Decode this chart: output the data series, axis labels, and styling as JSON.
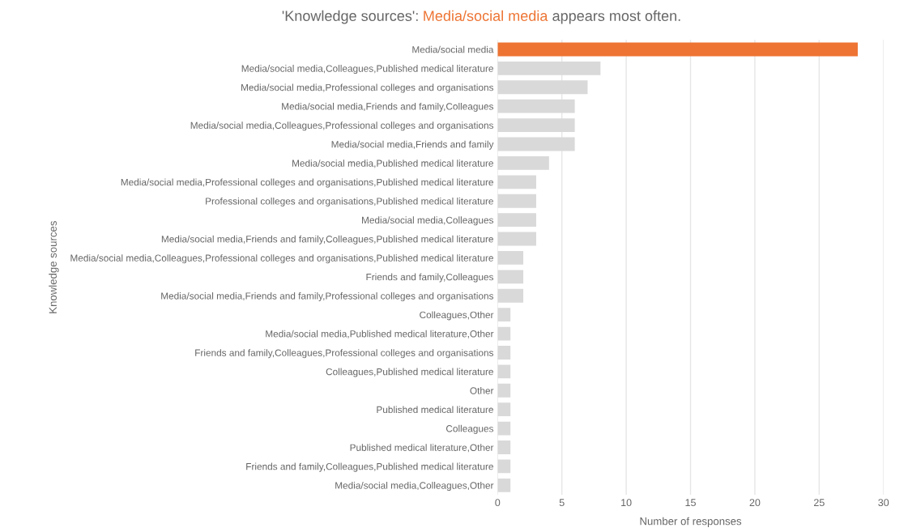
{
  "chart_data": {
    "type": "bar",
    "orientation": "horizontal",
    "title": "'Knowledge sources': Media/social media appears most often.",
    "xlabel": "Number of responses",
    "ylabel": "Knowledge sources",
    "categories": [
      "Media/social media",
      "Media/social media,Colleagues,Published medical literature",
      "Media/social media,Professional colleges and organisations",
      "Media/social media,Friends and family,Colleagues",
      "Media/social media,Colleagues,Professional colleges and organisations",
      "Media/social media,Friends and family",
      "Media/social media,Published medical literature",
      "Media/social media,Professional colleges and organisations,Published medical literature",
      "Professional colleges and organisations,Published medical literature",
      "Media/social media,Colleagues",
      "Media/social media,Friends and family,Colleagues,Published medical literature",
      "Media/social media,Colleagues,Professional colleges and organisations,Published medical literature",
      "Friends and family,Colleagues",
      "Media/social media,Friends and family,Professional colleges and organisations",
      "Colleagues,Other",
      "Media/social media,Published medical literature,Other",
      "Friends and family,Colleagues,Professional colleges and organisations",
      "Colleagues,Published medical literature",
      "Other",
      "Published medical literature",
      "Colleagues",
      "Published medical literature,Other",
      "Friends and family,Colleagues,Published medical literature",
      "Media/social media,Colleagues,Other"
    ],
    "values": [
      28,
      8,
      7,
      6,
      6,
      6,
      4,
      3,
      3,
      3,
      3,
      2,
      2,
      2,
      1,
      1,
      1,
      1,
      1,
      1,
      1,
      1,
      1,
      1
    ],
    "colors": [
      "#ed7433",
      "#d9d9d9",
      "#d9d9d9",
      "#d9d9d9",
      "#d9d9d9",
      "#d9d9d9",
      "#d9d9d9",
      "#d9d9d9",
      "#d9d9d9",
      "#d9d9d9",
      "#d9d9d9",
      "#d9d9d9",
      "#d9d9d9",
      "#d9d9d9",
      "#d9d9d9",
      "#d9d9d9",
      "#d9d9d9",
      "#d9d9d9",
      "#d9d9d9",
      "#d9d9d9",
      "#d9d9d9",
      "#d9d9d9",
      "#d9d9d9",
      "#d9d9d9"
    ],
    "xlim": [
      0,
      30
    ],
    "xticks": [
      0,
      5,
      10,
      15,
      20,
      25,
      30
    ],
    "grid": "x"
  }
}
